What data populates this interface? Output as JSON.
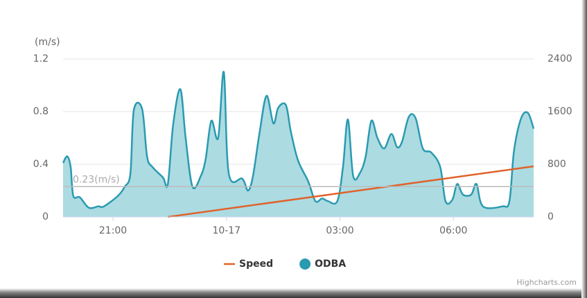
{
  "chart_data": {
    "type": "line",
    "y_axis_title": "(m/s)",
    "xlim": [
      19.68,
      32.12
    ],
    "xticks": [
      {
        "value": 21,
        "label": "21:00"
      },
      {
        "value": 24,
        "label": "10-17"
      },
      {
        "value": 27,
        "label": "03:00"
      },
      {
        "value": 30,
        "label": "06:00"
      }
    ],
    "ylim": [
      0,
      1.2
    ],
    "yticks": [
      0,
      0.4,
      0.8,
      1.2
    ],
    "y2lim": [
      0,
      2400
    ],
    "y2ticks": [
      0,
      800,
      1600,
      2400
    ],
    "grid": true,
    "plot_lines": [
      {
        "value": 0.23,
        "label": "0.23(m/s)"
      }
    ],
    "legend": "bottom",
    "credits": "Highcharts.com",
    "series": [
      {
        "name": "Speed",
        "type": "line",
        "axis": "y2",
        "color": "#e0622a",
        "x": [
          22.45,
          32.12
        ],
        "values": [
          0,
          768
        ]
      },
      {
        "name": "ODBA",
        "type": "area",
        "color": "#2a9ab0",
        "fill": "#acdbe2",
        "x": [
          19.68,
          19.79,
          19.88,
          19.95,
          20.12,
          20.36,
          20.61,
          20.76,
          21.13,
          21.31,
          21.46,
          21.55,
          21.77,
          21.9,
          22.04,
          22.32,
          22.45,
          22.59,
          22.78,
          22.92,
          23.1,
          23.32,
          23.45,
          23.6,
          23.78,
          23.93,
          24.06,
          24.42,
          24.57,
          24.7,
          24.88,
          25.06,
          25.24,
          25.37,
          25.57,
          25.7,
          25.89,
          26.16,
          26.35,
          26.53,
          26.68,
          26.93,
          27.08,
          27.21,
          27.35,
          27.54,
          27.68,
          27.83,
          27.99,
          28.17,
          28.36,
          28.51,
          28.64,
          28.82,
          29.0,
          29.19,
          29.41,
          29.65,
          29.79,
          29.97,
          30.1,
          30.25,
          30.47,
          30.61,
          30.78,
          31.29,
          31.48,
          31.6,
          31.79,
          31.97,
          32.12
        ],
        "values": [
          0.41,
          0.46,
          0.38,
          0.16,
          0.15,
          0.07,
          0.08,
          0.08,
          0.16,
          0.23,
          0.33,
          0.81,
          0.82,
          0.46,
          0.38,
          0.3,
          0.25,
          0.7,
          0.97,
          0.6,
          0.23,
          0.31,
          0.44,
          0.73,
          0.6,
          1.1,
          0.33,
          0.29,
          0.2,
          0.31,
          0.65,
          0.92,
          0.71,
          0.83,
          0.85,
          0.65,
          0.43,
          0.27,
          0.12,
          0.14,
          0.12,
          0.12,
          0.38,
          0.74,
          0.31,
          0.34,
          0.46,
          0.73,
          0.6,
          0.52,
          0.63,
          0.53,
          0.57,
          0.76,
          0.75,
          0.52,
          0.49,
          0.38,
          0.12,
          0.13,
          0.25,
          0.17,
          0.17,
          0.25,
          0.08,
          0.08,
          0.12,
          0.5,
          0.75,
          0.79,
          0.67
        ]
      }
    ]
  }
}
